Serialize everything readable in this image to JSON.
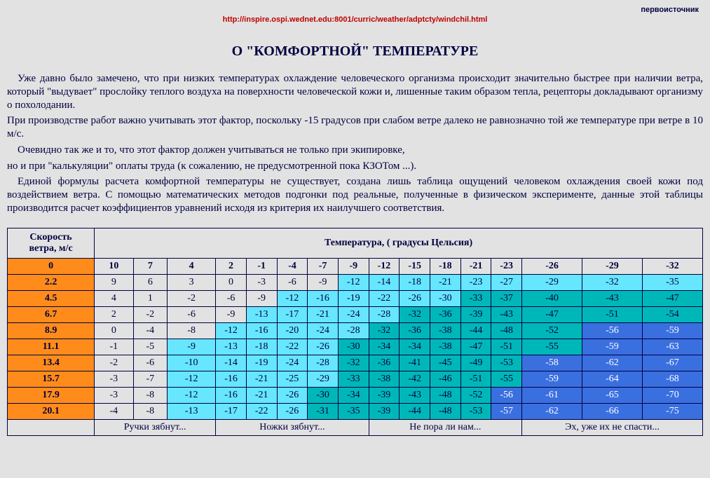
{
  "source_label": "первоисточник",
  "source_url": "http://inspire.ospi.wednet.edu:8001/curric/weather/adptcty/windchil.html",
  "title": "О \"КОМФОРТНОЙ\" ТЕМПЕРАТУРЕ",
  "paragraphs": [
    " Уже давно было замечено, что при низких температурах охлаждение человеческого организма происходит значительно быстрее при наличии ветра, который \"выдувает\" прослойку теплого воздуха на поверхности человеческой кожи и, лишенные таким образом тепла,  рецепторы докладывают организму о похолодании.",
    "При производстве работ важно учитывать этот фактор, поскольку -15 градусов при слабом  ветре далеко не равнозначно той же температуре при ветре в 10 м/с.",
    " Очевидно так же и то, что этот фактор должен учитываться не только при экипировке,",
    "но и при \"калькуляции\" оплаты труда (к сожалению, не предусмотренной пока КЗОТом ...).",
    " Единой формулы расчета комфортной температуры не существует, создана лишь таблица ощущений человеком охлаждения своей кожи под воздействием ветра. С помощью математических методов подгонки под реальные, полученные в физическом эксперименте, данные этой таблицы производится расчет  коэффициентов уравнений исходя из критерия их наилучшего соответствия."
  ],
  "table": {
    "corner_label_line1": "Скорость",
    "corner_label_line2": "ветра, м/с",
    "header_label": "Температура, ( градусы Цельсия)",
    "temp_cols": [
      "10",
      "7",
      "4",
      "2",
      "-1",
      "-4",
      "-7",
      "-9",
      "-12",
      "-15",
      "-18",
      "-21",
      "-23",
      "-26",
      "-29",
      "-32"
    ],
    "wind_rows": [
      "0",
      "2.2",
      "4.5",
      "6.7",
      "8.9",
      "11.1",
      "13.4",
      "15.7",
      "17.9",
      "20.1"
    ],
    "rows": [
      {
        "v": [
          "9",
          "6",
          "3",
          "0",
          "-3",
          "-6",
          "-9",
          "-12",
          "-14",
          "-18",
          "-21",
          "-23",
          "-27",
          "-29",
          "-32",
          "-35"
        ],
        "z": [
          0,
          0,
          0,
          0,
          0,
          0,
          0,
          1,
          1,
          1,
          1,
          1,
          1,
          1,
          1,
          1
        ]
      },
      {
        "v": [
          "4",
          "1",
          "-2",
          "-6",
          "-9",
          "-12",
          "-16",
          "-19",
          "-22",
          "-26",
          "-30",
          "-33",
          "-37",
          "-40",
          "-43",
          "-47"
        ],
        "z": [
          0,
          0,
          0,
          0,
          0,
          1,
          1,
          1,
          1,
          1,
          1,
          2,
          2,
          2,
          2,
          2
        ]
      },
      {
        "v": [
          "2",
          "-2",
          "-6",
          "-9",
          "-13",
          "-17",
          "-21",
          "-24",
          "-28",
          "-32",
          "-36",
          "-39",
          "-43",
          "-47",
          "-51",
          "-54"
        ],
        "z": [
          0,
          0,
          0,
          0,
          1,
          1,
          1,
          1,
          1,
          2,
          2,
          2,
          2,
          2,
          2,
          2
        ]
      },
      {
        "v": [
          "0",
          "-4",
          "-8",
          "-12",
          "-16",
          "-20",
          "-24",
          "-28",
          "-32",
          "-36",
          "-38",
          "-44",
          "-48",
          "-52",
          "-56",
          "-59"
        ],
        "z": [
          0,
          0,
          0,
          1,
          1,
          1,
          1,
          1,
          2,
          2,
          2,
          2,
          2,
          2,
          3,
          3
        ]
      },
      {
        "v": [
          "-1",
          "-5",
          "-9",
          "-13",
          "-18",
          "-22",
          "-26",
          "-30",
          "-34",
          "-34",
          "-38",
          "-47",
          "-51",
          "-55",
          "-59",
          "-63"
        ],
        "z": [
          0,
          0,
          1,
          1,
          1,
          1,
          1,
          2,
          2,
          2,
          2,
          2,
          2,
          2,
          3,
          3
        ]
      },
      {
        "v": [
          "-2",
          "-6",
          "-10",
          "-14",
          "-19",
          "-24",
          "-28",
          "-32",
          "-36",
          "-41",
          "-45",
          "-49",
          "-53",
          "-58",
          "-62",
          "-67"
        ],
        "z": [
          0,
          0,
          1,
          1,
          1,
          1,
          1,
          2,
          2,
          2,
          2,
          2,
          2,
          3,
          3,
          3
        ]
      },
      {
        "v": [
          "-3",
          "-7",
          "-12",
          "-16",
          "-21",
          "-25",
          "-29",
          "-33",
          "-38",
          "-42",
          "-46",
          "-51",
          "-55",
          "-59",
          "-64",
          "-68"
        ],
        "z": [
          0,
          0,
          1,
          1,
          1,
          1,
          1,
          2,
          2,
          2,
          2,
          2,
          2,
          3,
          3,
          3
        ]
      },
      {
        "v": [
          "-3",
          "-8",
          "-12",
          "-16",
          "-21",
          "-26",
          "-30",
          "-34",
          "-39",
          "-43",
          "-48",
          "-52",
          "-56",
          "-61",
          "-65",
          "-70"
        ],
        "z": [
          0,
          0,
          1,
          1,
          1,
          1,
          2,
          2,
          2,
          2,
          2,
          2,
          3,
          3,
          3,
          3
        ]
      },
      {
        "v": [
          "-4",
          "-8",
          "-13",
          "-17",
          "-22",
          "-26",
          "-31",
          "-35",
          "-39",
          "-44",
          "-48",
          "-53",
          "-57",
          "-62",
          "-66",
          "-75"
        ],
        "z": [
          0,
          0,
          1,
          1,
          1,
          1,
          2,
          2,
          2,
          2,
          2,
          2,
          3,
          3,
          3,
          3
        ]
      }
    ],
    "footer_labels": [
      "Ручки зябнут...",
      "Ножки зябнут...",
      "Не пора ли нам...",
      "Эх, уже их не спасти..."
    ],
    "footer_spans": [
      3,
      5,
      5,
      4
    ],
    "colors": {
      "wind_col": "#ff8c1a",
      "zone1": "#66e6ff",
      "zone2": "#00b7b7",
      "zone3": "#3a6fe0",
      "plain": "#e2e2e2",
      "border": "#000040",
      "link": "#c00000"
    }
  }
}
